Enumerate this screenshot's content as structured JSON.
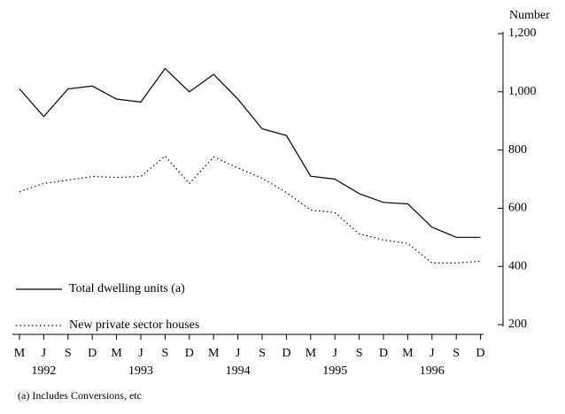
{
  "chart_data": {
    "type": "line",
    "y_axis_title": "Number",
    "categories": [
      "M",
      "J",
      "S",
      "D",
      "M",
      "J",
      "S",
      "D",
      "M",
      "J",
      "S",
      "D",
      "M",
      "J",
      "S",
      "D",
      "M",
      "J",
      "S",
      "D"
    ],
    "years": [
      "1992",
      "1993",
      "1994",
      "1995",
      "1996"
    ],
    "series": [
      {
        "name": "Total dwelling units (a)",
        "color": "#000000",
        "style": "solid",
        "values": [
          1010,
          915,
          1010,
          1020,
          975,
          965,
          1080,
          1000,
          1060,
          975,
          873,
          850,
          710,
          700,
          650,
          620,
          615,
          535,
          500,
          500
        ]
      },
      {
        "name": "New private sector houses",
        "color": "#000000",
        "style": "dotted",
        "values": [
          657,
          685,
          697,
          709,
          706,
          709,
          779,
          685,
          776,
          739,
          703,
          654,
          594,
          585,
          512,
          491,
          479,
          412,
          412,
          418
        ]
      }
    ],
    "ylim": [
      200,
      1200
    ],
    "yticks": [
      {
        "value": 1200,
        "label": "1,200"
      },
      {
        "value": 1000,
        "label": "1,000"
      },
      800,
      600,
      400,
      200
    ],
    "footnote": "(a) Includes Conversions, etc"
  }
}
